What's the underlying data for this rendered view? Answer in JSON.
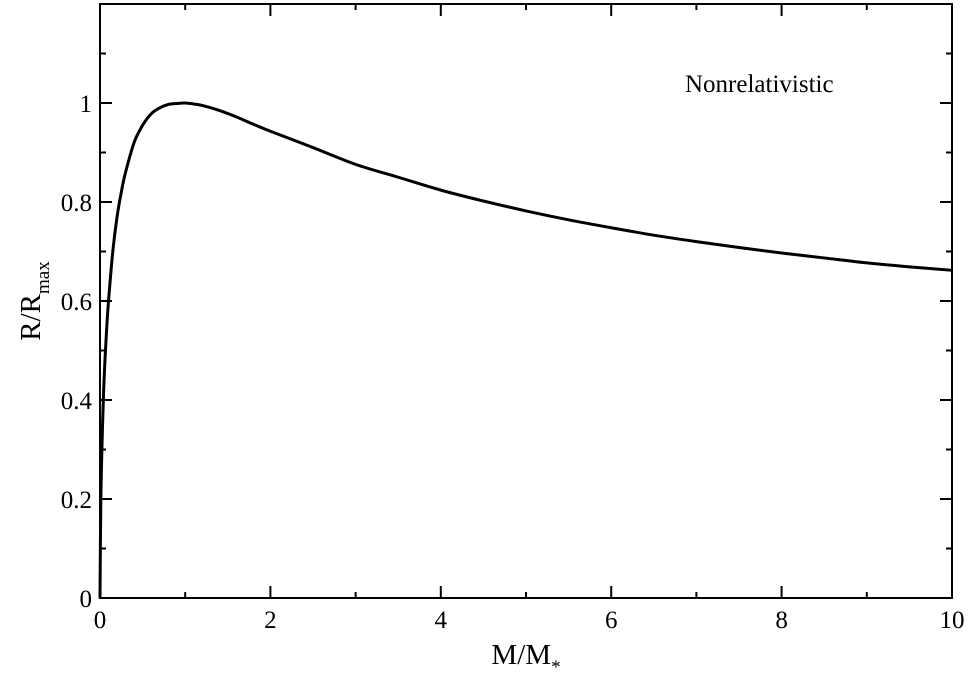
{
  "chart_data": {
    "type": "line",
    "xlabel_main": "M/M",
    "xlabel_sub": "*",
    "ylabel_main": "R/R",
    "ylabel_sub": "max",
    "annotation": "Nonrelativistic",
    "xlim": [
      0,
      10
    ],
    "ylim": [
      0,
      1.2
    ],
    "xticks": [
      "0",
      "2",
      "4",
      "6",
      "8",
      "10"
    ],
    "yticks": [
      "0",
      "0.2",
      "0.4",
      "0.6",
      "0.8",
      "1"
    ],
    "grid": false,
    "series": [
      {
        "x": [
          0,
          0.01,
          0.03,
          0.05,
          0.08,
          0.1,
          0.15,
          0.2,
          0.25,
          0.3,
          0.4,
          0.5,
          0.6,
          0.7,
          0.8,
          0.9,
          1.0,
          1.1,
          1.2,
          1.4,
          1.6,
          1.8,
          2.0,
          2.5,
          3.0,
          3.5,
          4.0,
          4.5,
          5.0,
          5.5,
          6.0,
          6.5,
          7.0,
          7.5,
          8.0,
          8.5,
          9.0,
          9.5,
          10.0
        ],
        "y": [
          0,
          0.2,
          0.35,
          0.45,
          0.55,
          0.6,
          0.7,
          0.77,
          0.82,
          0.86,
          0.92,
          0.955,
          0.978,
          0.99,
          0.997,
          0.999,
          1.0,
          0.998,
          0.995,
          0.985,
          0.972,
          0.957,
          0.943,
          0.91,
          0.876,
          0.85,
          0.824,
          0.802,
          0.782,
          0.764,
          0.748,
          0.733,
          0.72,
          0.708,
          0.697,
          0.687,
          0.677,
          0.669,
          0.662
        ]
      }
    ]
  }
}
